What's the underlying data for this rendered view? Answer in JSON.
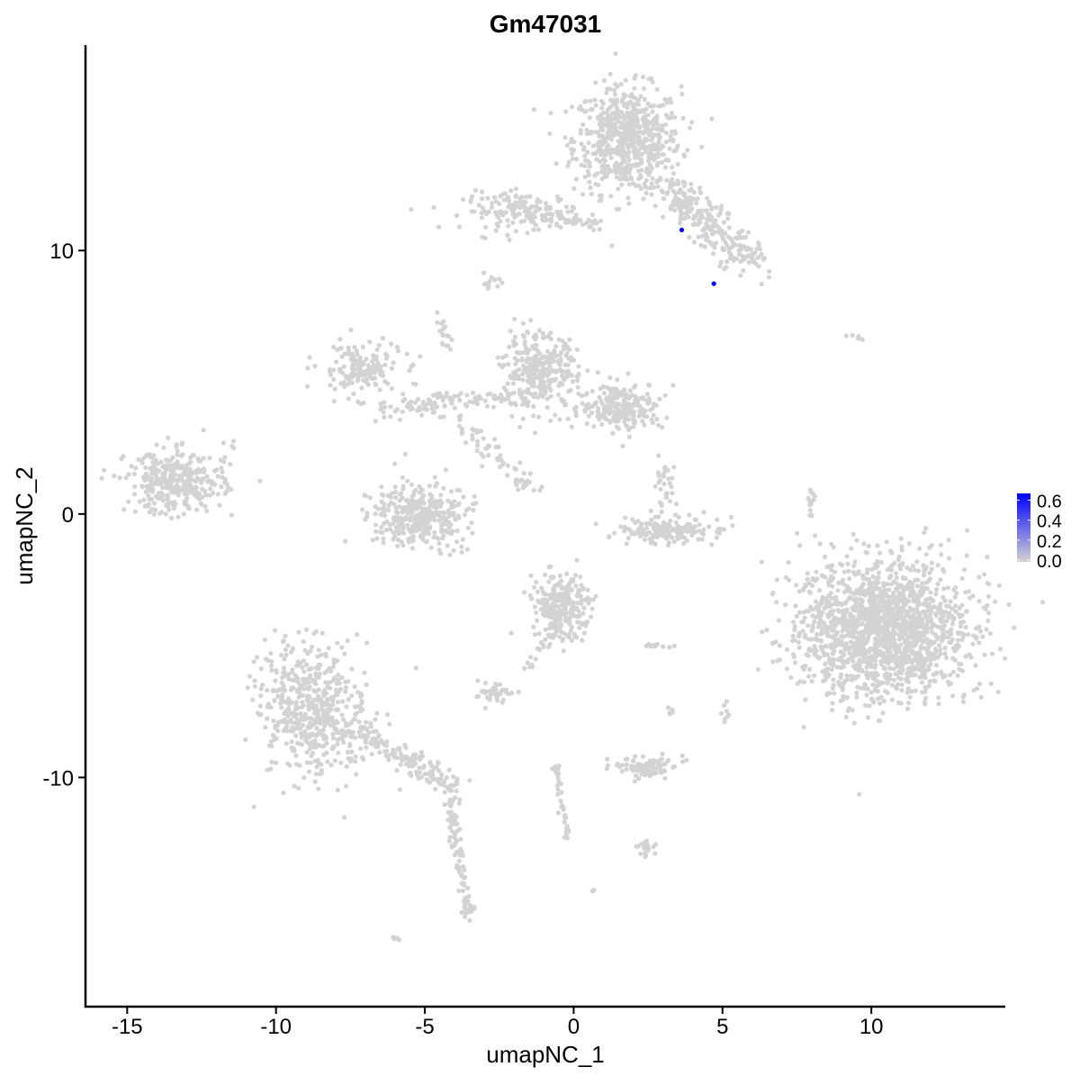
{
  "chart_data": {
    "type": "scatter",
    "title": "Gm47031",
    "xlabel": "umapNC_1",
    "ylabel": "umapNC_2",
    "xlim": [
      -16.4,
      14.5
    ],
    "ylim": [
      -18.7,
      17.8
    ],
    "x_ticks": [
      -15,
      -10,
      -5,
      0,
      5,
      10
    ],
    "y_ticks": [
      -10,
      0,
      10
    ],
    "x_tick_labels": [
      "-15",
      "-10",
      "-5",
      "0",
      "5",
      "10"
    ],
    "y_tick_labels": [
      "-10",
      "0",
      "10"
    ],
    "grid": false,
    "colors": {
      "low": "#D3D3D3",
      "high": "#0000FF"
    },
    "legend": {
      "placement": "right",
      "ticks": [
        0.0,
        0.2,
        0.4,
        0.6
      ],
      "tick_labels": [
        "0.0",
        "0.2",
        "0.4",
        "0.6"
      ],
      "max": 0.65
    },
    "clusters": [
      {
        "cx": 1.8,
        "cy": 14.2,
        "sx": 0.9,
        "sy": 1.0,
        "n": 650
      },
      {
        "from": [
          3.0,
          12.5
        ],
        "to": [
          6.0,
          9.6
        ],
        "w": 0.7,
        "n": 260
      },
      {
        "cx": -1.7,
        "cy": 11.5,
        "sx": 1.0,
        "sy": 0.35,
        "n": 160
      },
      {
        "from": [
          -1.0,
          11.2
        ],
        "to": [
          0.8,
          11.0
        ],
        "w": 0.2,
        "n": 40
      },
      {
        "cx": -2.8,
        "cy": 8.7,
        "sx": 0.2,
        "sy": 0.2,
        "n": 12
      },
      {
        "from": [
          -4.6,
          7.7
        ],
        "to": [
          -4.1,
          6.0
        ],
        "w": 0.15,
        "n": 18
      },
      {
        "cx": -7.2,
        "cy": 5.5,
        "sx": 0.7,
        "sy": 0.5,
        "n": 160
      },
      {
        "cx": -1.1,
        "cy": 5.4,
        "sx": 0.6,
        "sy": 0.7,
        "n": 300
      },
      {
        "cx": 1.6,
        "cy": 4.1,
        "sx": 0.7,
        "sy": 0.45,
        "n": 230
      },
      {
        "from": [
          -6.5,
          4.0
        ],
        "to": [
          -1.5,
          4.5
        ],
        "w": 0.4,
        "n": 120
      },
      {
        "from": [
          -4.0,
          3.5
        ],
        "to": [
          -1.5,
          1.0
        ],
        "w": 0.4,
        "n": 60
      },
      {
        "cx": -13.4,
        "cy": 1.2,
        "sx": 0.8,
        "sy": 0.6,
        "n": 330
      },
      {
        "from": [
          -12.0,
          0.5
        ],
        "to": [
          -11.5,
          2.8
        ],
        "w": 0.3,
        "n": 15
      },
      {
        "cx": -5.2,
        "cy": 0.0,
        "sx": 0.8,
        "sy": 0.6,
        "n": 340
      },
      {
        "cx": 3.25,
        "cy": -0.6,
        "sx": 0.9,
        "sy": 0.25,
        "n": 160
      },
      {
        "cx": 3.2,
        "cy": 1.0,
        "sx": 0.25,
        "sy": 0.5,
        "n": 30
      },
      {
        "cx": 10.4,
        "cy": -4.4,
        "sx": 1.4,
        "sy": 1.3,
        "n": 1700
      },
      {
        "cx": -0.4,
        "cy": -3.5,
        "sx": 0.5,
        "sy": 0.6,
        "n": 260
      },
      {
        "from": [
          -1.6,
          -6.0
        ],
        "to": [
          -0.5,
          -4.0
        ],
        "w": 0.15,
        "n": 20
      },
      {
        "cx": -8.7,
        "cy": -7.5,
        "sx": 0.9,
        "sy": 1.3,
        "n": 520
      },
      {
        "from": [
          -7.5,
          -8.0
        ],
        "to": [
          -3.8,
          -10.5
        ],
        "w": 0.4,
        "n": 160
      },
      {
        "from": [
          -4.2,
          -10.8
        ],
        "to": [
          -3.5,
          -15.4
        ],
        "w": 0.25,
        "n": 90
      },
      {
        "cx": -2.6,
        "cy": -6.9,
        "sx": 0.3,
        "sy": 0.2,
        "n": 40
      },
      {
        "cx": 2.4,
        "cy": -9.6,
        "sx": 0.5,
        "sy": 0.2,
        "n": 90
      },
      {
        "from": [
          -0.6,
          -9.5
        ],
        "to": [
          -0.2,
          -12.3
        ],
        "w": 0.12,
        "n": 40
      },
      {
        "cx": 2.4,
        "cy": -12.7,
        "sx": 0.2,
        "sy": 0.15,
        "n": 20
      },
      {
        "cx": 2.8,
        "cy": -5.0,
        "sx": 0.3,
        "sy": 0.05,
        "n": 10
      },
      {
        "from": [
          8.0,
          0.9
        ],
        "to": [
          7.9,
          -0.5
        ],
        "w": 0.1,
        "n": 15
      },
      {
        "cx": 9.5,
        "cy": 6.7,
        "sx": 0.15,
        "sy": 0.05,
        "n": 5
      },
      {
        "cx": 5.1,
        "cy": -7.5,
        "sx": 0.1,
        "sy": 0.3,
        "n": 8
      },
      {
        "cx": 3.3,
        "cy": -7.6,
        "sx": 0.1,
        "sy": 0.3,
        "n": 6
      },
      {
        "cx": -6.0,
        "cy": -16.1,
        "sx": 0.1,
        "sy": 0.06,
        "n": 5
      },
      {
        "cx": 0.6,
        "cy": -14.3,
        "sx": 0.05,
        "sy": 0.05,
        "n": 3
      }
    ],
    "expressing_points": [
      {
        "x": 3.63,
        "y": 10.78,
        "value": 0.65
      },
      {
        "x": 4.71,
        "y": 8.74,
        "value": 0.65
      }
    ]
  }
}
